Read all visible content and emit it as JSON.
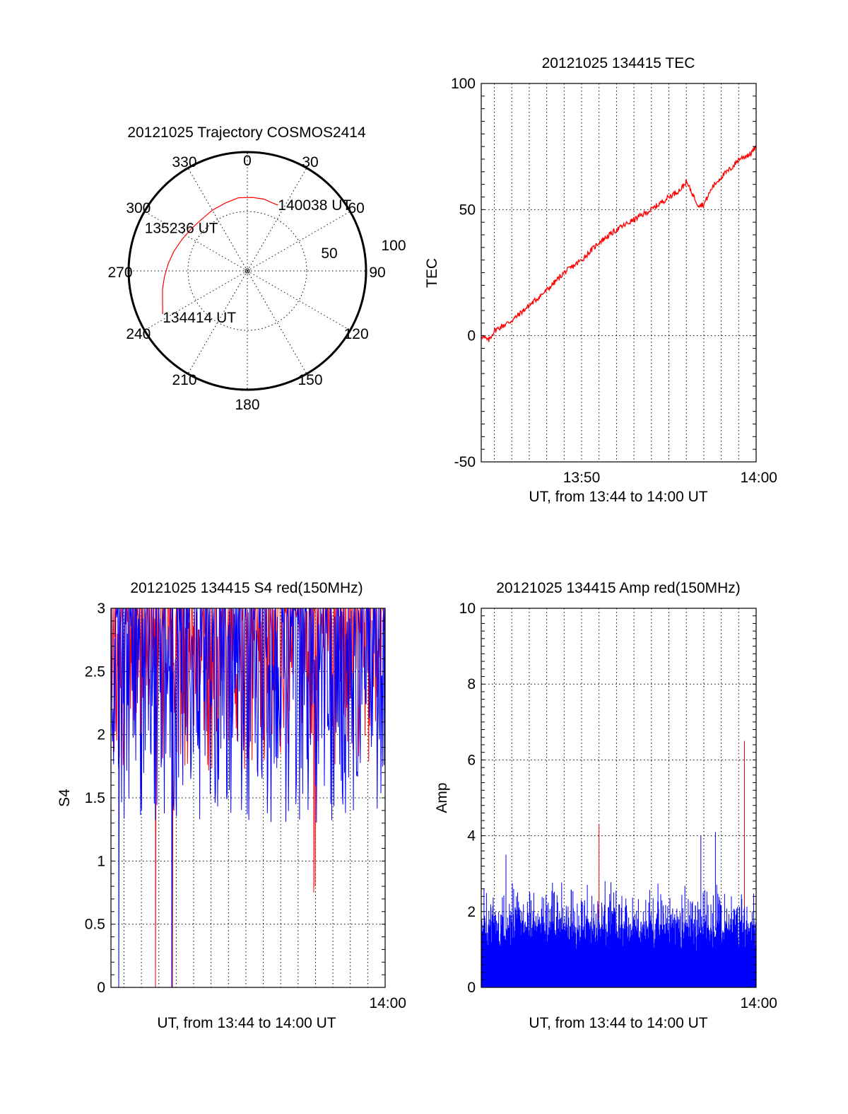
{
  "chart_data": [
    {
      "type": "polar",
      "title": "20121025 Trajectory COSMOS2414",
      "azimuth_labels": [
        "0",
        "30",
        "60",
        "90",
        "120",
        "150",
        "180",
        "210",
        "240",
        "270",
        "300",
        "330"
      ],
      "radius_labels": [
        "50",
        "100"
      ],
      "rlim": [
        0,
        100
      ],
      "grid": true,
      "series": [
        {
          "color": "#ff0000",
          "azimuth": [
            243,
            250,
            258,
            266,
            275,
            285,
            296,
            307,
            318,
            330,
            342,
            353,
            4,
            13,
            20,
            25
          ],
          "radius": [
            80,
            76,
            73,
            70,
            67,
            64,
            61,
            59,
            58,
            59,
            60,
            62,
            62,
            62,
            61,
            61
          ]
        }
      ],
      "annotations": [
        {
          "text": "134414 UT",
          "azimuth": 243,
          "radius": 80
        },
        {
          "text": "135236 UT",
          "azimuth": 300,
          "radius": 60
        },
        {
          "text": "140038 UT",
          "azimuth": 25,
          "radius": 61
        }
      ]
    },
    {
      "type": "line",
      "title": "20121025 134415 TEC",
      "xlabel": "UT, from 13:44 to 14:00 UT",
      "ylabel": "TEC",
      "xlim": [
        "13:44:15",
        "14:00:00"
      ],
      "ylim": [
        -50,
        100
      ],
      "x_tick_labels": [
        "13:50",
        "14:00"
      ],
      "y_tick_labels": [
        "-50",
        "0",
        "50",
        "100"
      ],
      "grid": true,
      "series": [
        {
          "color": "#ff0000",
          "x": [
            "13:44:15",
            "13:44:40",
            "13:45:00",
            "13:46:00",
            "13:47:00",
            "13:48:00",
            "13:49:00",
            "13:50:00",
            "13:51:00",
            "13:52:00",
            "13:53:00",
            "13:54:00",
            "13:55:00",
            "13:55:40",
            "13:56:00",
            "13:56:40",
            "13:57:00",
            "13:57:30",
            "13:58:00",
            "13:58:40",
            "13:59:00",
            "13:59:40",
            "14:00:00"
          ],
          "y": [
            0,
            -2,
            2,
            6,
            12,
            18,
            25,
            30,
            37,
            42,
            46,
            50,
            55,
            58,
            61,
            52,
            52,
            59,
            63,
            67,
            70,
            72,
            75
          ]
        }
      ]
    },
    {
      "type": "line",
      "title": "20121025 134415 S4 red(150MHz)",
      "xlabel": "UT, from 13:44 to 14:00 UT",
      "ylabel": "S4",
      "xlim": [
        "13:44:15",
        "14:00:00"
      ],
      "ylim": [
        0,
        3
      ],
      "x_tick_labels": [
        "14:00"
      ],
      "y_tick_labels": [
        "0",
        "0.5",
        "1",
        "1.5",
        "2",
        "2.5",
        "3"
      ],
      "grid": true,
      "series": [
        {
          "color": "#ff0000",
          "y_range": [
            0,
            3
          ],
          "note_values": {
            "min_spike": 0.75
          }
        },
        {
          "color": "#0000ff",
          "y_range": [
            0,
            3
          ],
          "note_values": {
            "typical_low": 1.3
          }
        }
      ]
    },
    {
      "type": "line",
      "title": "20121025 134415 Amp red(150MHz)",
      "xlabel": "UT, from 13:44 to 14:00 UT",
      "ylabel": "Amp",
      "xlim": [
        "13:44:15",
        "14:00:00"
      ],
      "ylim": [
        0,
        10
      ],
      "x_tick_labels": [
        "14:00"
      ],
      "y_tick_labels": [
        "0",
        "2",
        "4",
        "6",
        "8",
        "10"
      ],
      "grid": true,
      "series": [
        {
          "color": "#ff0000",
          "peaks": [
            {
              "x": "13:51:00",
              "y": 4.3
            },
            {
              "x": "13:59:20",
              "y": 6.5
            }
          ]
        },
        {
          "color": "#0000ff",
          "base_fill": 1.5,
          "peaks": [
            {
              "x": "13:45:40",
              "y": 3.5
            },
            {
              "x": "13:57:40",
              "y": 4.1
            },
            {
              "x": "13:56:50",
              "y": 4.0
            }
          ]
        }
      ]
    }
  ]
}
